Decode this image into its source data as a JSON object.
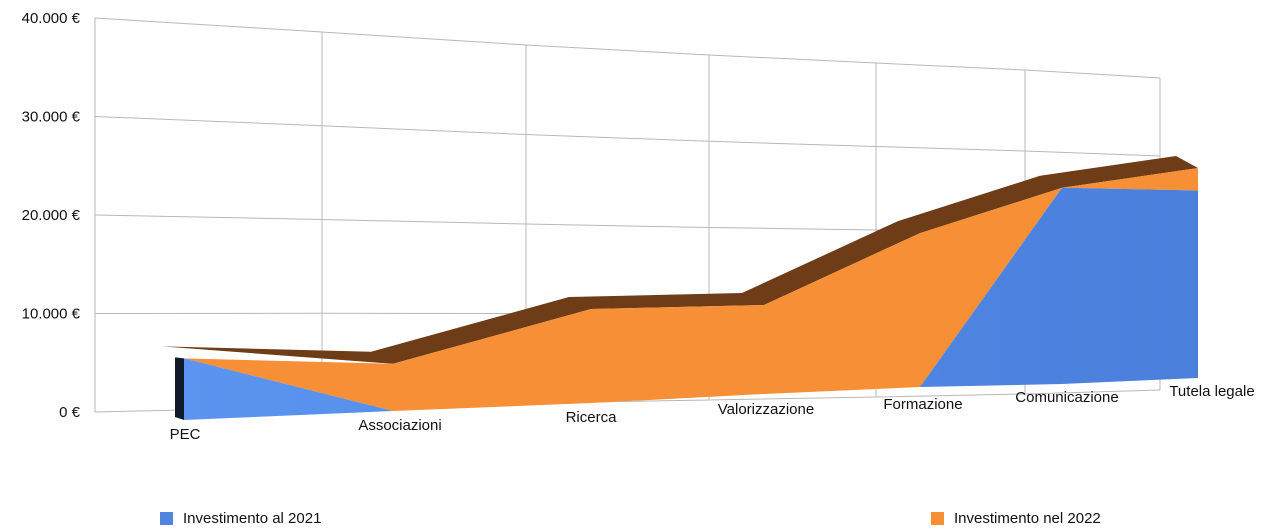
{
  "chart_data": {
    "type": "area",
    "categories": [
      "PEC",
      "Associazioni",
      "Ricerca",
      "Valorizzazione",
      "Formazione",
      "Comunicazione",
      "Tutela legale"
    ],
    "y_tick_labels": [
      "40.000 €",
      "30.000 €",
      "20.000 €",
      "10.000 €",
      "0 €"
    ],
    "ylim": [
      0,
      40000
    ],
    "grid": true,
    "legend_position": "bottom",
    "stacked": true,
    "series": [
      {
        "name": "Investimento al 2021",
        "color": "#4f84df",
        "values": [
          6500,
          0,
          0,
          0,
          0,
          25000,
          25000
        ]
      },
      {
        "name": "Investimento nel 2022",
        "color": "#f68f35",
        "values": [
          0,
          5000,
          10500,
          10500,
          19000,
          0,
          3000
        ]
      }
    ]
  }
}
